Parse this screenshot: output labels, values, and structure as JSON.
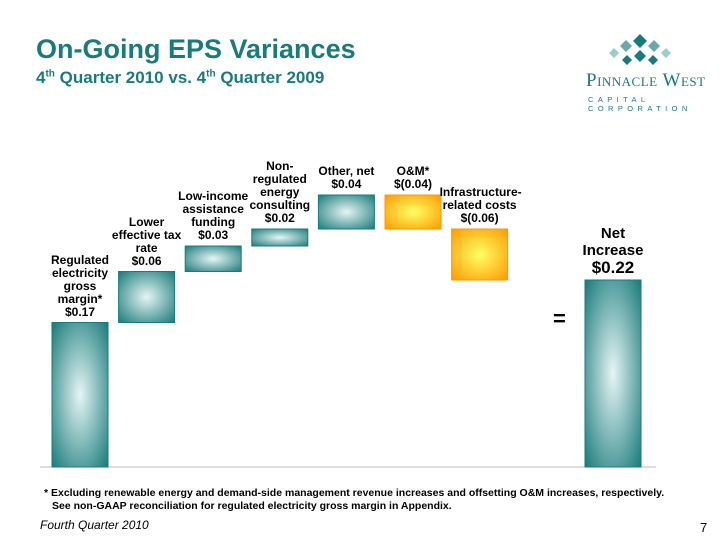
{
  "title": "On-Going EPS Variances",
  "subtitle": "4th Quarter 2010 vs. 4th Quarter 2009",
  "logo": {
    "name": "Pinnacle West",
    "subtitle": "CAPITAL CORPORATION"
  },
  "chart_data": {
    "type": "waterfall",
    "categories": [
      "Regulated electricity gross margin*",
      "Lower effective tax rate",
      "Low-income assistance funding",
      "Non-regulated energy consulting",
      "Other, net",
      "O&M*",
      "Infrastructure-related costs"
    ],
    "values": [
      0.17,
      0.06,
      0.03,
      0.02,
      0.04,
      -0.04,
      -0.06
    ],
    "value_labels": [
      "$0.17",
      "$0.06",
      "$0.03",
      "$0.02",
      "$0.04",
      "$(0.04)",
      "$(0.06)"
    ],
    "total": {
      "name": "Net Increase",
      "value": 0.22,
      "value_label": "$0.22"
    },
    "equals": "=",
    "increase_color": "#1a7b7b",
    "decrease_color": "#ff9900",
    "total_color": "#1a7b7b"
  },
  "footnotes": [
    "* Excluding renewable energy and demand-side management revenue increases and offsetting O&M increases, respectively.",
    "See non-GAAP reconciliation for regulated electricity gross margin in Appendix."
  ],
  "footer": "Fourth Quarter 2010",
  "page_number": "7"
}
